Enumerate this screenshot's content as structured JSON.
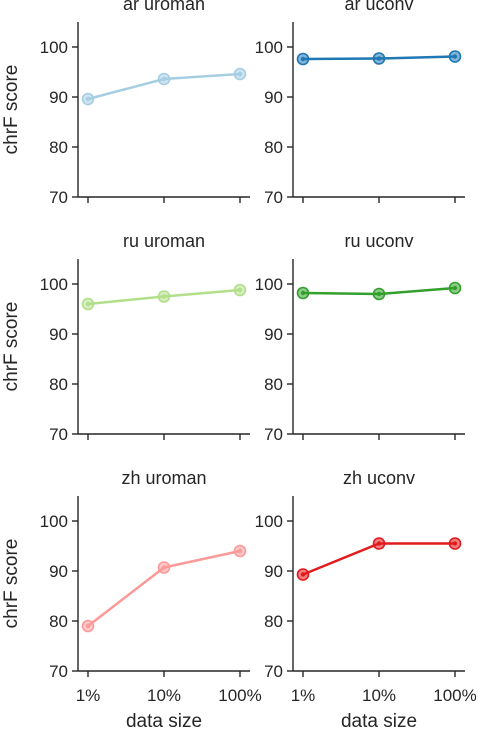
{
  "chart_data": [
    {
      "type": "line",
      "title": "ar uroman",
      "color": "#a6cee3",
      "categories": [
        "1%",
        "10%",
        "100%"
      ],
      "values": [
        89.6,
        93.6,
        94.6
      ],
      "ylim": [
        70,
        105
      ],
      "yticks": [
        70,
        80,
        90,
        100
      ],
      "ylabel": "chrF score",
      "xlabel": ""
    },
    {
      "type": "line",
      "title": "ar uconv",
      "color": "#1f78b4",
      "categories": [
        "1%",
        "10%",
        "100%"
      ],
      "values": [
        97.6,
        97.7,
        98.1
      ],
      "ylim": [
        70,
        105
      ],
      "yticks": [
        70,
        80,
        90,
        100
      ],
      "ylabel": "",
      "xlabel": ""
    },
    {
      "type": "line",
      "title": "ru uroman",
      "color": "#b2df8a",
      "categories": [
        "1%",
        "10%",
        "100%"
      ],
      "values": [
        96.0,
        97.5,
        98.8
      ],
      "ylim": [
        70,
        105
      ],
      "yticks": [
        70,
        80,
        90,
        100
      ],
      "ylabel": "chrF score",
      "xlabel": ""
    },
    {
      "type": "line",
      "title": "ru uconv",
      "color": "#33a02c",
      "categories": [
        "1%",
        "10%",
        "100%"
      ],
      "values": [
        98.2,
        98.0,
        99.2
      ],
      "ylim": [
        70,
        105
      ],
      "yticks": [
        70,
        80,
        90,
        100
      ],
      "ylabel": "",
      "xlabel": ""
    },
    {
      "type": "line",
      "title": "zh uroman",
      "color": "#fb9a99",
      "categories": [
        "1%",
        "10%",
        "100%"
      ],
      "values": [
        79.0,
        90.7,
        94.0
      ],
      "ylim": [
        70,
        105
      ],
      "yticks": [
        70,
        80,
        90,
        100
      ],
      "ylabel": "chrF score",
      "xlabel": "data size"
    },
    {
      "type": "line",
      "title": "zh uconv",
      "color": "#e31a1c",
      "categories": [
        "1%",
        "10%",
        "100%"
      ],
      "values": [
        89.3,
        95.5,
        95.5
      ],
      "ylim": [
        70,
        105
      ],
      "yticks": [
        70,
        80,
        90,
        100
      ],
      "ylabel": "",
      "xlabel": "data size"
    }
  ]
}
